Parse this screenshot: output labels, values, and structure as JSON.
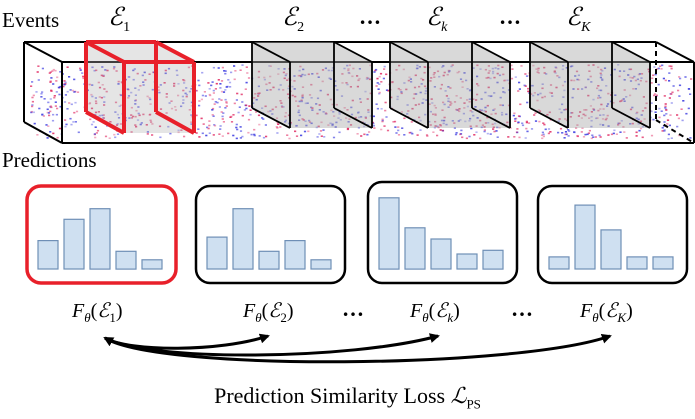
{
  "row_labels": {
    "events": "Events",
    "predictions": "Predictions"
  },
  "event_labels": [
    "𝓔1",
    "𝓔2",
    "𝓔k",
    "𝓔K"
  ],
  "event_label_parts": [
    {
      "base": "ℰ",
      "sub": "1"
    },
    {
      "base": "ℰ",
      "sub": "2"
    },
    {
      "base": "ℰ",
      "sub": "k"
    },
    {
      "base": "ℰ",
      "sub": "K"
    }
  ],
  "ellipsis": "…",
  "prediction_labels": [
    {
      "prefix": "F",
      "theta": "θ",
      "arg": "ℰ",
      "sub": "1"
    },
    {
      "prefix": "F",
      "theta": "θ",
      "arg": "ℰ",
      "sub": "2"
    },
    {
      "prefix": "F",
      "theta": "θ",
      "arg": "ℰ",
      "sub": "k"
    },
    {
      "prefix": "F",
      "theta": "θ",
      "arg": "ℰ",
      "sub": "K"
    }
  ],
  "histograms": [
    {
      "highlighted": true,
      "values": [
        0.4,
        0.7,
        0.85,
        0.25,
        0.13
      ]
    },
    {
      "highlighted": false,
      "values": [
        0.45,
        0.85,
        0.25,
        0.4,
        0.13
      ]
    },
    {
      "highlighted": false,
      "values": [
        0.95,
        0.55,
        0.4,
        0.2,
        0.25
      ]
    },
    {
      "highlighted": false,
      "values": [
        0.17,
        0.9,
        0.55,
        0.17,
        0.17
      ]
    }
  ],
  "loss": {
    "text": "Prediction Similarity Loss ",
    "symbol": "ℒ",
    "sub": "PS"
  },
  "colors": {
    "highlight": "#e8202a",
    "bar_fill": "#cfe0f1",
    "bar_stroke": "#6f8fb6",
    "slice_fill": "#bdbdbd",
    "events_red": "#e0245e",
    "events_blue": "#3a3ae0"
  }
}
